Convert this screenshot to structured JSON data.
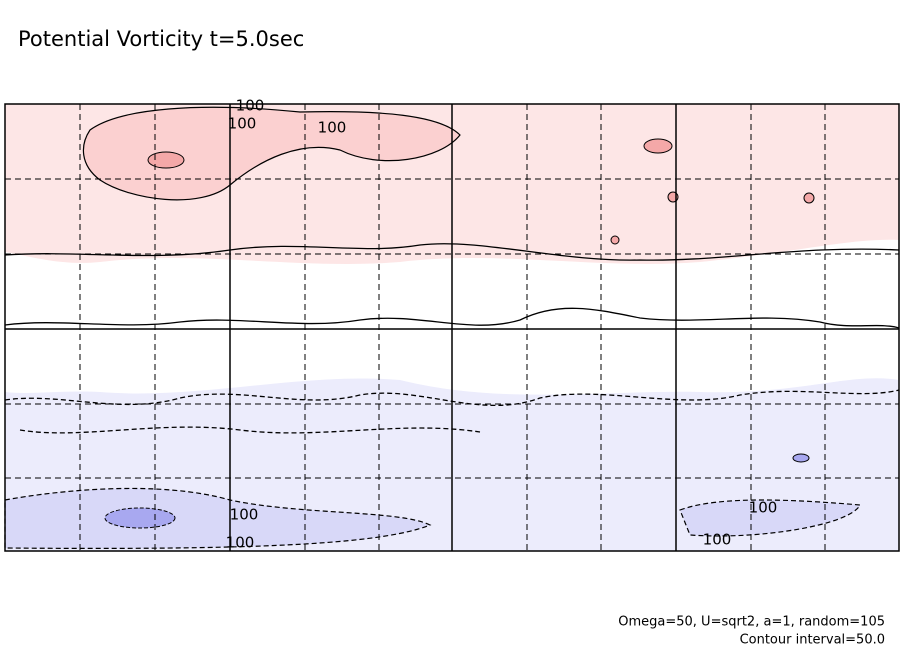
{
  "chart_data": {
    "type": "contour",
    "title": "Potential Vorticity t=5.0sec",
    "contour_labels": [
      100,
      100,
      100,
      100,
      100,
      100,
      100
    ],
    "notes": [
      "Omega=50, U=sqrt2, a=1, random=105",
      "Contour interval=50.0"
    ]
  }
}
